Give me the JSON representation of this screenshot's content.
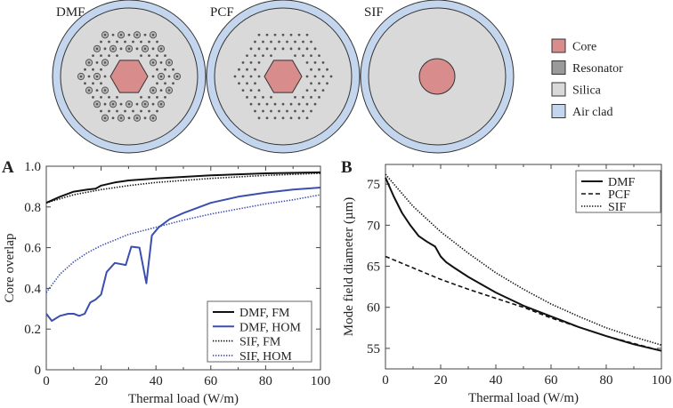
{
  "diagrams": {
    "fibers": [
      {
        "label": "DMF",
        "type": "dmf"
      },
      {
        "label": "PCF",
        "type": "pcf"
      },
      {
        "label": "SIF",
        "type": "sif"
      }
    ],
    "legend": [
      {
        "label": "Core",
        "color": "#d98c8c"
      },
      {
        "label": "Resonator",
        "color": "#9a9a9a"
      },
      {
        "label": "Silica",
        "color": "#d9d9d9"
      },
      {
        "label": "Air clad",
        "color": "#c4d6ee"
      }
    ]
  },
  "chart_data": [
    {
      "panel": "A",
      "type": "line",
      "xlabel": "Thermal load (W/m)",
      "ylabel": "Core overlap",
      "xlim": [
        0,
        100
      ],
      "ylim": [
        0,
        1.0
      ],
      "xticks": [
        "0",
        "20",
        "40",
        "60",
        "80",
        "100"
      ],
      "yticks": [
        "0",
        "0.2",
        "0.4",
        "0.6",
        "0.8",
        "1.0"
      ],
      "legend_position": "bottom-right",
      "series": [
        {
          "name": "DMF, FM",
          "color": "#111111",
          "style": "solid",
          "x": [
            0,
            5,
            10,
            15,
            18,
            20,
            25,
            30,
            40,
            60,
            80,
            100
          ],
          "y": [
            0.82,
            0.85,
            0.875,
            0.885,
            0.89,
            0.905,
            0.92,
            0.93,
            0.94,
            0.955,
            0.965,
            0.97
          ]
        },
        {
          "name": "DMF, HOM",
          "color": "#3a4fb0",
          "style": "solid",
          "x": [
            0,
            2,
            5,
            8,
            10,
            12,
            14,
            16,
            18,
            20,
            22,
            25,
            29,
            31,
            34,
            36.5,
            38.5,
            41,
            45,
            50,
            60,
            70,
            80,
            90,
            100
          ],
          "y": [
            0.275,
            0.24,
            0.265,
            0.275,
            0.275,
            0.265,
            0.275,
            0.33,
            0.345,
            0.37,
            0.48,
            0.525,
            0.515,
            0.605,
            0.6,
            0.425,
            0.66,
            0.7,
            0.74,
            0.77,
            0.82,
            0.85,
            0.87,
            0.885,
            0.895
          ]
        },
        {
          "name": "SIF, FM",
          "color": "#111111",
          "style": "dotted",
          "x": [
            0,
            10,
            20,
            30,
            40,
            60,
            80,
            100
          ],
          "y": [
            0.82,
            0.86,
            0.885,
            0.905,
            0.92,
            0.94,
            0.955,
            0.965
          ]
        },
        {
          "name": "SIF, HOM",
          "color": "#3a4fb0",
          "style": "dotted",
          "x": [
            0,
            5,
            10,
            15,
            20,
            30,
            40,
            50,
            60,
            70,
            80,
            90,
            100
          ],
          "y": [
            0.38,
            0.47,
            0.53,
            0.575,
            0.61,
            0.665,
            0.7,
            0.735,
            0.765,
            0.79,
            0.815,
            0.835,
            0.86
          ]
        }
      ]
    },
    {
      "panel": "B",
      "type": "line",
      "xlabel": "Thermal load (W/m)",
      "ylabel": "Mode field diameter (µm)",
      "xlim": [
        0,
        100
      ],
      "ylim": [
        52.5,
        77.4
      ],
      "xticks": [
        "0",
        "20",
        "40",
        "60",
        "80",
        "100"
      ],
      "yticks": [
        "55",
        "60",
        "65",
        "70",
        "75"
      ],
      "legend_position": "top-right",
      "series": [
        {
          "name": "DMF",
          "color": "#111111",
          "style": "solid",
          "x": [
            0,
            3,
            6,
            9,
            12,
            15,
            18,
            20,
            22,
            25,
            30,
            40,
            50,
            60,
            70,
            80,
            90,
            100
          ],
          "y": [
            75.8,
            73.5,
            71.5,
            70,
            68.7,
            68,
            67.4,
            66.2,
            65.5,
            64.8,
            63.7,
            61.8,
            60.2,
            58.9,
            57.6,
            56.5,
            55.5,
            54.7
          ]
        },
        {
          "name": "PCF",
          "color": "#111111",
          "style": "dashed",
          "x": [
            0,
            10,
            20,
            30,
            40,
            50,
            60,
            70,
            80,
            90,
            100
          ],
          "y": [
            66.2,
            64.8,
            63.4,
            62.2,
            61.1,
            60,
            58.7,
            57.6,
            56.5,
            55.6,
            54.7
          ]
        },
        {
          "name": "SIF",
          "color": "#111111",
          "style": "dotted",
          "x": [
            0,
            10,
            20,
            30,
            40,
            50,
            60,
            70,
            80,
            90,
            100
          ],
          "y": [
            76.2,
            72.3,
            69.2,
            66.6,
            64.2,
            62.2,
            60.4,
            58.9,
            57.5,
            56.4,
            55.4
          ]
        }
      ]
    }
  ]
}
